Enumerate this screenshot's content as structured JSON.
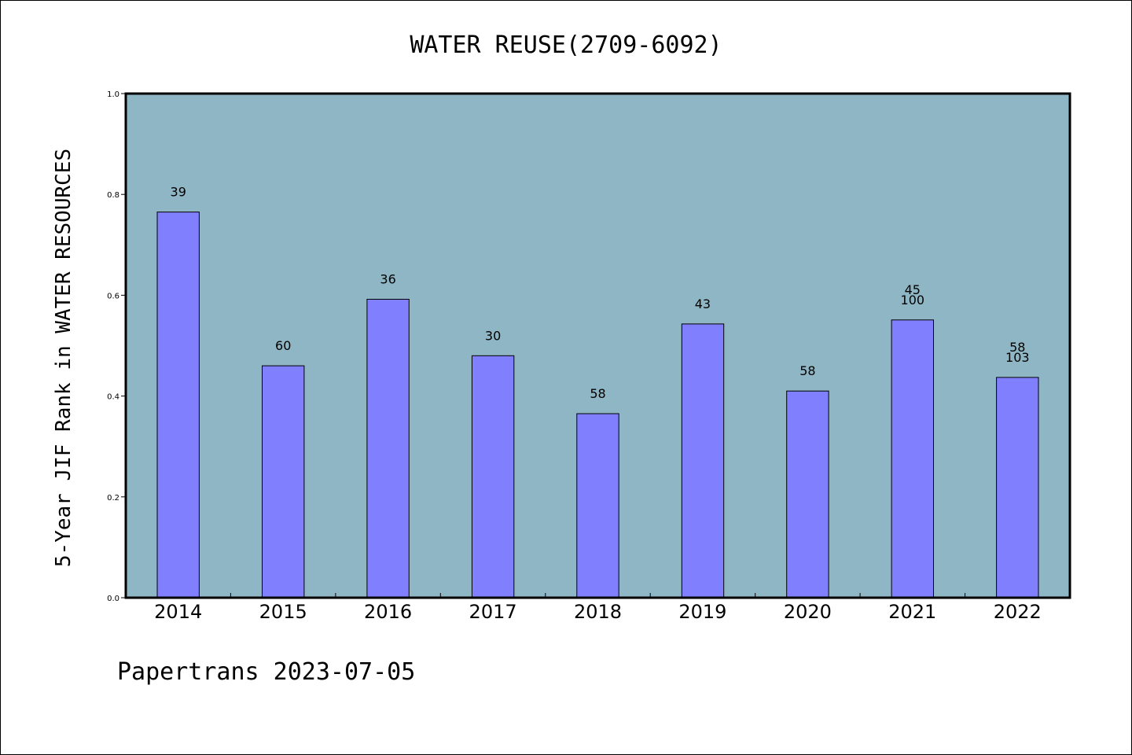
{
  "footer": "Papertrans 2023-07-05",
  "colors": {
    "plot_background": "#8fb6c4",
    "bar_fill": "#8080ff",
    "bar_edge": "#000000"
  },
  "chart_data": {
    "type": "bar",
    "title": "WATER REUSE(2709-6092)",
    "xlabel": "",
    "ylabel": "5-Year JIF Rank in WATER RESOURCES",
    "ylim": [
      0,
      1.0
    ],
    "yticks": [
      "0.0",
      "0.2",
      "0.4",
      "0.6",
      "0.8",
      "1.0"
    ],
    "grid": false,
    "categories": [
      "2014",
      "2015",
      "2016",
      "2017",
      "2018",
      "2019",
      "2020",
      "2021",
      "2022"
    ],
    "values": [
      0.765,
      0.46,
      0.592,
      0.48,
      0.365,
      0.543,
      0.41,
      0.551,
      0.437
    ],
    "labels": [
      [
        "39"
      ],
      [
        "60"
      ],
      [
        "36"
      ],
      [
        "30"
      ],
      [
        "58"
      ],
      [
        "43"
      ],
      [
        "58"
      ],
      [
        "45",
        "100"
      ],
      [
        "58",
        "103"
      ]
    ]
  }
}
